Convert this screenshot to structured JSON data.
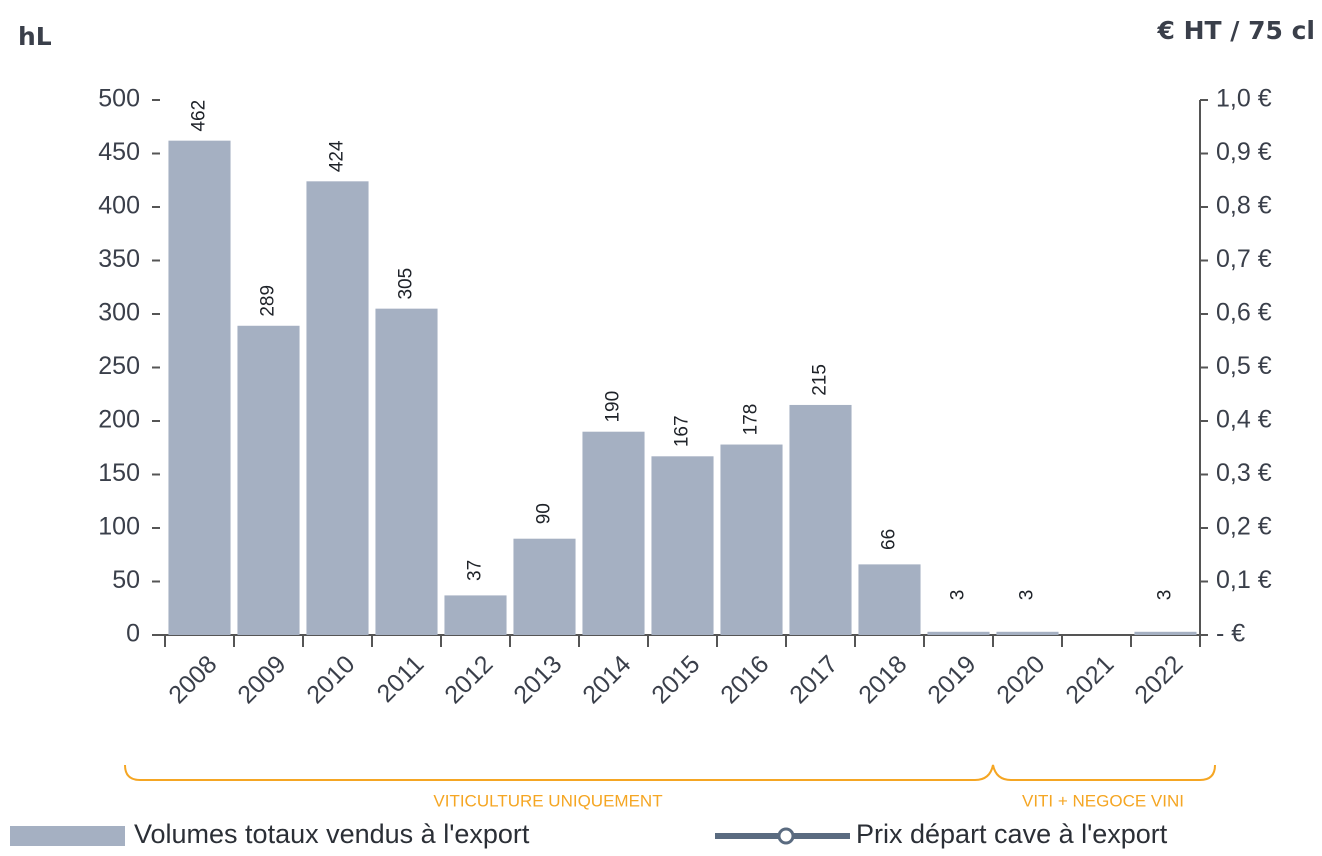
{
  "chart_data": {
    "type": "bar",
    "y_label": "hL",
    "y2_label": "€ HT / 75 cl",
    "categories": [
      "2008",
      "2009",
      "2010",
      "2011",
      "2012",
      "2013",
      "2014",
      "2015",
      "2016",
      "2017",
      "2018",
      "2019",
      "2020",
      "2021",
      "2022"
    ],
    "series": [
      {
        "name": "Volumes totaux vendus à l'export",
        "color": "#a5b0c2",
        "values": [
          462,
          289,
          424,
          305,
          37,
          90,
          190,
          167,
          178,
          215,
          66,
          3,
          3,
          null,
          3
        ]
      },
      {
        "name": "Prix départ cave à l'export",
        "color": "#5a6b80",
        "axis": "y2",
        "type": "line",
        "values": [
          null,
          null,
          null,
          null,
          null,
          null,
          null,
          null,
          null,
          null,
          null,
          null,
          null,
          null,
          null
        ]
      }
    ],
    "ylim": [
      0,
      500
    ],
    "yticks": [
      0,
      50,
      100,
      150,
      200,
      250,
      300,
      350,
      400,
      450,
      500
    ],
    "y2lim": [
      0,
      1.0
    ],
    "y2ticks": [
      {
        "value": 0,
        "label": "- €"
      },
      {
        "value": 0.1,
        "label": "0,1 €"
      },
      {
        "value": 0.2,
        "label": "0,2 €"
      },
      {
        "value": 0.3,
        "label": "0,3 €"
      },
      {
        "value": 0.4,
        "label": "0,4 €"
      },
      {
        "value": 0.5,
        "label": "0,5 €"
      },
      {
        "value": 0.6,
        "label": "0,6 €"
      },
      {
        "value": 0.7,
        "label": "0,7 €"
      },
      {
        "value": 0.8,
        "label": "0,8 €"
      },
      {
        "value": 0.9,
        "label": "0,9 €"
      },
      {
        "value": 1.0,
        "label": "1,0 €"
      }
    ],
    "annotations": [
      "VITICULTURE UNIQUEMENT",
      "VITI + NEGOCE VINI"
    ]
  }
}
